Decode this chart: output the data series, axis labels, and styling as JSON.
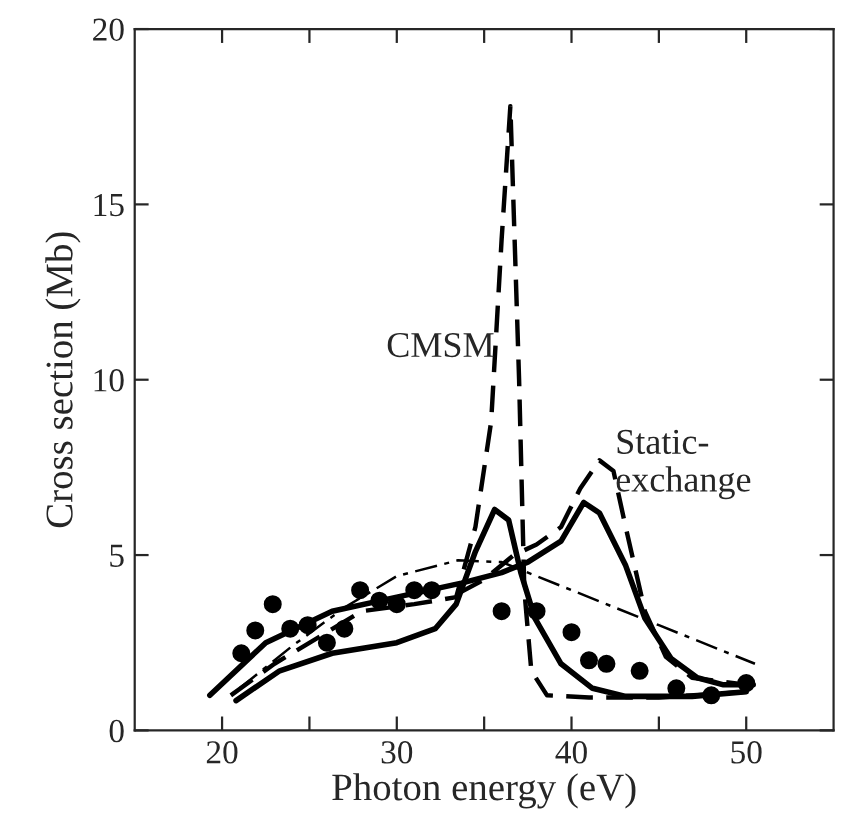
{
  "chart_data": {
    "type": "line",
    "xlabel": "Photon energy (eV)",
    "ylabel": "Cross section (Mb)",
    "xlim": [
      15,
      55
    ],
    "ylim": [
      0,
      20
    ],
    "xticks": [
      20,
      {
        "value": 25,
        "label": null
      },
      30,
      {
        "value": 35,
        "label": null
      },
      40,
      {
        "value": 45,
        "label": null
      },
      50
    ],
    "yticks": [
      0,
      5,
      10,
      15,
      20
    ],
    "grid": false,
    "legend": false,
    "series": [
      {
        "type": "scatter",
        "color": "#000000",
        "marker": "circle",
        "x": [
          21.1,
          21.9,
          22.9,
          23.9,
          24.9,
          26.0,
          27.0,
          27.9,
          29.0,
          30.0,
          31.0,
          32.0,
          36.0,
          38.0,
          40.0,
          41.0,
          42.0,
          43.9,
          46.0,
          48.0,
          50.0
        ],
        "values": [
          2.2,
          2.85,
          3.6,
          2.9,
          3.0,
          2.5,
          2.9,
          4.0,
          3.7,
          3.6,
          4.0,
          4.0,
          3.4,
          3.4,
          2.8,
          2.0,
          1.9,
          1.7,
          1.2,
          1.0,
          1.35
        ]
      },
      {
        "color": "#000000",
        "line_style": "solid",
        "x": [
          19.3,
          22.5,
          26.3,
          30,
          33.7,
          36,
          37.5,
          39.4,
          40.7,
          41.6,
          43.1,
          44.2,
          45.7,
          47.2,
          48.7,
          50.4
        ],
        "values": [
          1.0,
          2.5,
          3.4,
          3.8,
          4.2,
          4.5,
          4.8,
          5.4,
          6.5,
          6.2,
          4.7,
          3.2,
          2.05,
          1.5,
          1.3,
          1.3
        ]
      },
      {
        "color": "#000000",
        "line_style": "solid",
        "x": [
          20.8,
          23.3,
          26.3,
          30,
          32.2,
          33.4,
          34.5,
          35.6,
          36.4,
          37.1,
          37.9,
          39.4,
          41.2,
          43.1,
          46.9,
          50
        ],
        "values": [
          0.85,
          1.7,
          2.2,
          2.5,
          2.9,
          3.6,
          5.1,
          6.3,
          6.0,
          4.5,
          3.2,
          1.9,
          1.2,
          0.97,
          0.97,
          1.1
        ]
      },
      {
        "color": "#000000",
        "line_style": "dashed",
        "x": [
          20.5,
          23,
          26,
          28,
          31,
          33.4,
          34.5,
          35.4,
          36.0,
          36.5,
          37.0,
          37.3,
          37.7,
          38.6,
          41,
          45,
          50
        ],
        "values": [
          1.0,
          1.9,
          2.8,
          3.4,
          3.6,
          3.8,
          5.8,
          8.8,
          14,
          17.8,
          10,
          4,
          1.7,
          1.0,
          0.94,
          0.94,
          1.1
        ]
      },
      {
        "color": "#000000",
        "line_style": "dashed",
        "x": [
          33.5,
          35,
          36.7,
          38,
          39.4,
          40.5,
          41.6,
          42.4,
          43.1,
          44.2,
          45.4,
          46.9,
          50
        ],
        "values": [
          3.9,
          4.3,
          5.0,
          5.3,
          5.8,
          6.9,
          7.7,
          7.4,
          5.8,
          3.4,
          2.1,
          1.5,
          1.3
        ]
      },
      {
        "color": "#000000",
        "line_style": "dashdot",
        "x": [
          21,
          24,
          27,
          30,
          33.5,
          36,
          40,
          45,
          50.5
        ],
        "values": [
          1.2,
          2.4,
          3.5,
          4.4,
          4.85,
          4.8,
          4.0,
          3.0,
          1.9
        ]
      }
    ],
    "annotations": [
      {
        "text": "CMSM",
        "x": 35.6,
        "y": 10.9
      },
      {
        "text": "Static-\nexchange",
        "x": 42.5,
        "y": 7.6
      }
    ]
  }
}
